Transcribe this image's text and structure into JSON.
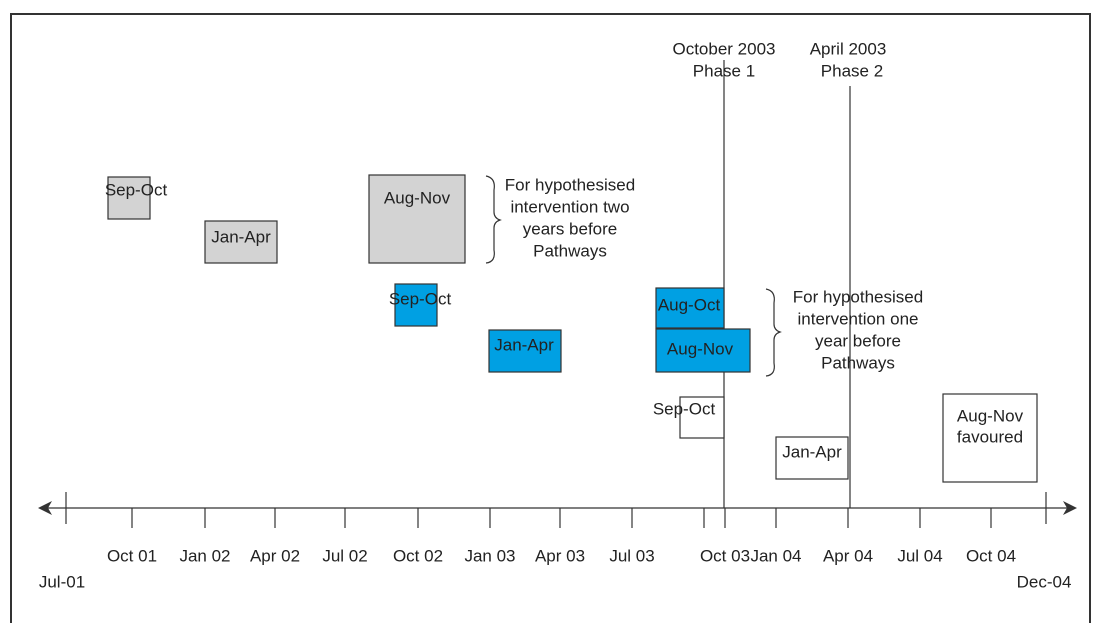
{
  "phases": [
    {
      "date": "October 2003",
      "label": "Phase 1"
    },
    {
      "date": "April 2003",
      "label": "Phase 2"
    }
  ],
  "axis": {
    "start": "Jul-01",
    "end": "Dec-04",
    "ticks": [
      "Oct 01",
      "Jan 02",
      "Apr 02",
      "Jul 02",
      "Oct 02",
      "Jan 03",
      "Apr 03",
      "Jul 03",
      "Oct 03",
      "Jan 04",
      "Apr 04",
      "Jul 04",
      "Oct 04"
    ]
  },
  "boxes": {
    "two_years": [
      "Sep-Oct",
      "Jan-Apr",
      "Aug-Nov"
    ],
    "one_year": [
      "Sep-Oct",
      "Jan-Apr",
      "Aug-Oct",
      "Aug-Nov"
    ],
    "pathways": [
      "Sep-Oct",
      "Jan-Apr",
      "Aug-Nov",
      "favoured"
    ]
  },
  "notes": [
    [
      "For hypothesised",
      "intervention two",
      "years before",
      "Pathways"
    ],
    [
      "For hypothesised",
      "intervention one",
      "year before",
      "Pathways"
    ]
  ]
}
